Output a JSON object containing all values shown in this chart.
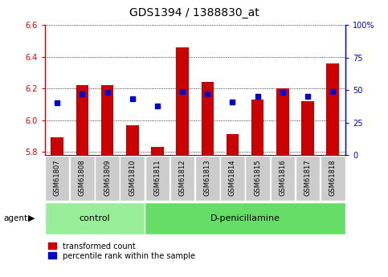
{
  "title": "GDS1394 / 1388830_at",
  "samples": [
    "GSM61807",
    "GSM61808",
    "GSM61809",
    "GSM61810",
    "GSM61811",
    "GSM61812",
    "GSM61813",
    "GSM61814",
    "GSM61815",
    "GSM61816",
    "GSM61817",
    "GSM61818"
  ],
  "transformed_count": [
    5.89,
    6.22,
    6.22,
    5.97,
    5.83,
    6.46,
    6.24,
    5.91,
    6.13,
    6.2,
    6.12,
    6.36
  ],
  "percentile_rank": [
    40,
    47,
    48,
    43,
    38,
    49,
    47,
    41,
    45,
    48,
    45,
    49
  ],
  "y_min": 5.78,
  "y_max": 6.6,
  "y_ticks": [
    5.8,
    6.0,
    6.2,
    6.4,
    6.6
  ],
  "y2_ticks": [
    0,
    25,
    50,
    75,
    100
  ],
  "bar_color": "#cc0000",
  "dot_color": "#0000cc",
  "bar_width": 0.5,
  "n_control": 4,
  "n_treatment": 8,
  "control_label": "control",
  "treatment_label": "D-penicillamine",
  "agent_label": "agent",
  "legend_bar_label": "transformed count",
  "legend_dot_label": "percentile rank within the sample",
  "control_bg": "#99ee99",
  "treatment_bg": "#66dd66",
  "sample_box_bg": "#cccccc",
  "title_fontsize": 10,
  "tick_fontsize": 7,
  "label_fontsize": 7.5
}
